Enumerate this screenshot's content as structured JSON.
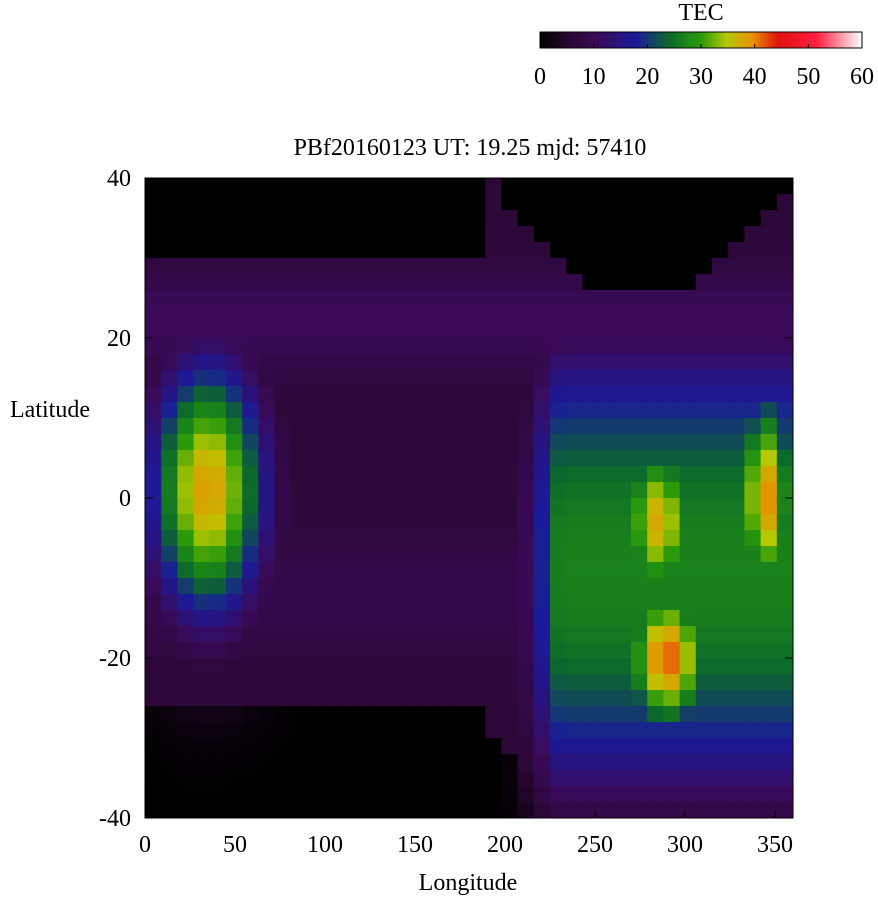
{
  "chart_data": {
    "type": "heatmap",
    "title": "PBf20160123  UT: 19.25  mjd: 57410",
    "xlabel": "Longitude",
    "ylabel": "Latitude",
    "xlim": [
      0,
      360
    ],
    "ylim": [
      -40,
      40
    ],
    "x_ticks": [
      "0",
      "50",
      "100",
      "150",
      "200",
      "250",
      "300",
      "350"
    ],
    "y_ticks": [
      "40",
      "20",
      "0",
      "-20",
      "-40"
    ],
    "colorbar": {
      "label": "TEC",
      "range": [
        0,
        60
      ],
      "ticks": [
        "0",
        "10",
        "20",
        "30",
        "40",
        "50",
        "60"
      ],
      "palette": [
        "#000000",
        "#3a0a4a",
        "#1c1c8c",
        "#0a8a0a",
        "#c8c800",
        "#e01010",
        "#ffffff"
      ]
    },
    "grid_step": {
      "lon": 9,
      "lat": 2
    },
    "features": [
      {
        "lon": 35,
        "lat": 1,
        "tec": 39,
        "sigma_lon": 24,
        "sigma_lat": 12,
        "north_cut": 22
      },
      {
        "lon": 290,
        "lat": -20,
        "tec": 42,
        "sigma_lon": 18,
        "sigma_lat": 7
      },
      {
        "lon": 285,
        "lat": -3,
        "tec": 38,
        "sigma_lon": 16,
        "sigma_lat": 8
      },
      {
        "lon": 345,
        "lat": 0,
        "tec": 40,
        "sigma_lon": 12,
        "sigma_lat": 10
      }
    ],
    "crests": [
      {
        "lon_from": 200,
        "lon_to": 360,
        "lat_max": 18,
        "lat_min": -36,
        "tec": 27
      }
    ],
    "background": {
      "tec_equator": 6,
      "north_edge_lat": 30,
      "south_edge_lat": -26
    }
  }
}
